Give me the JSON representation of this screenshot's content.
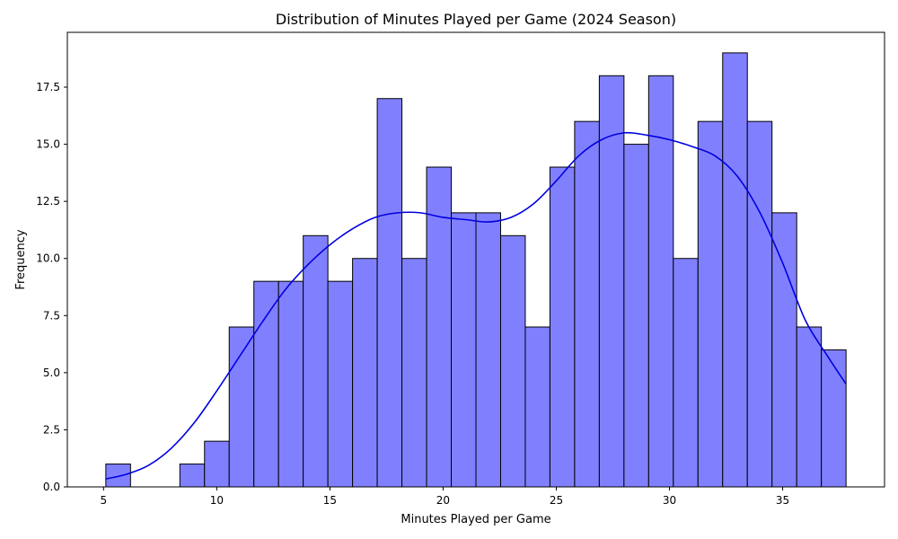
{
  "chart_data": {
    "type": "bar",
    "subtype": "histogram",
    "title": "Distribution of Minutes Played per Game (2024 Season)",
    "xlabel": "Minutes Played per Game",
    "ylabel": "Frequency",
    "xlim": [
      3.4,
      39.5
    ],
    "ylim": [
      0,
      19.9
    ],
    "x_ticks": [
      5,
      10,
      15,
      20,
      25,
      30,
      35
    ],
    "y_ticks": [
      0.0,
      2.5,
      5.0,
      7.5,
      10.0,
      12.5,
      15.0,
      17.5
    ],
    "bin_start": 5.1,
    "bin_width": 1.09,
    "counts": [
      1,
      0,
      0,
      1,
      2,
      7,
      9,
      9,
      11,
      9,
      10,
      17,
      10,
      14,
      12,
      12,
      11,
      7,
      14,
      16,
      18,
      15,
      18,
      10,
      16,
      19,
      16,
      12,
      7,
      6
    ],
    "kde": {
      "x": [
        5.1,
        6.0,
        7.0,
        8.0,
        9.0,
        10.0,
        11.0,
        12.0,
        13.0,
        14.0,
        15.0,
        16.0,
        17.0,
        18.0,
        19.0,
        20.0,
        21.0,
        22.0,
        23.0,
        24.0,
        25.0,
        26.0,
        27.0,
        28.0,
        29.0,
        30.0,
        31.0,
        32.0,
        33.0,
        34.0,
        35.0,
        36.0,
        37.0,
        37.8
      ],
      "y": [
        0.35,
        0.55,
        0.95,
        1.7,
        2.8,
        4.2,
        5.7,
        7.2,
        8.6,
        9.7,
        10.6,
        11.3,
        11.8,
        12.0,
        12.0,
        11.8,
        11.7,
        11.6,
        11.8,
        12.4,
        13.4,
        14.5,
        15.2,
        15.5,
        15.4,
        15.2,
        14.9,
        14.5,
        13.6,
        12.0,
        9.8,
        7.3,
        5.7,
        4.5
      ]
    },
    "bar_color": "#8080ff",
    "bar_edge_color": "#000000",
    "kde_color": "#0000e0",
    "grid": false,
    "legend": "none"
  }
}
